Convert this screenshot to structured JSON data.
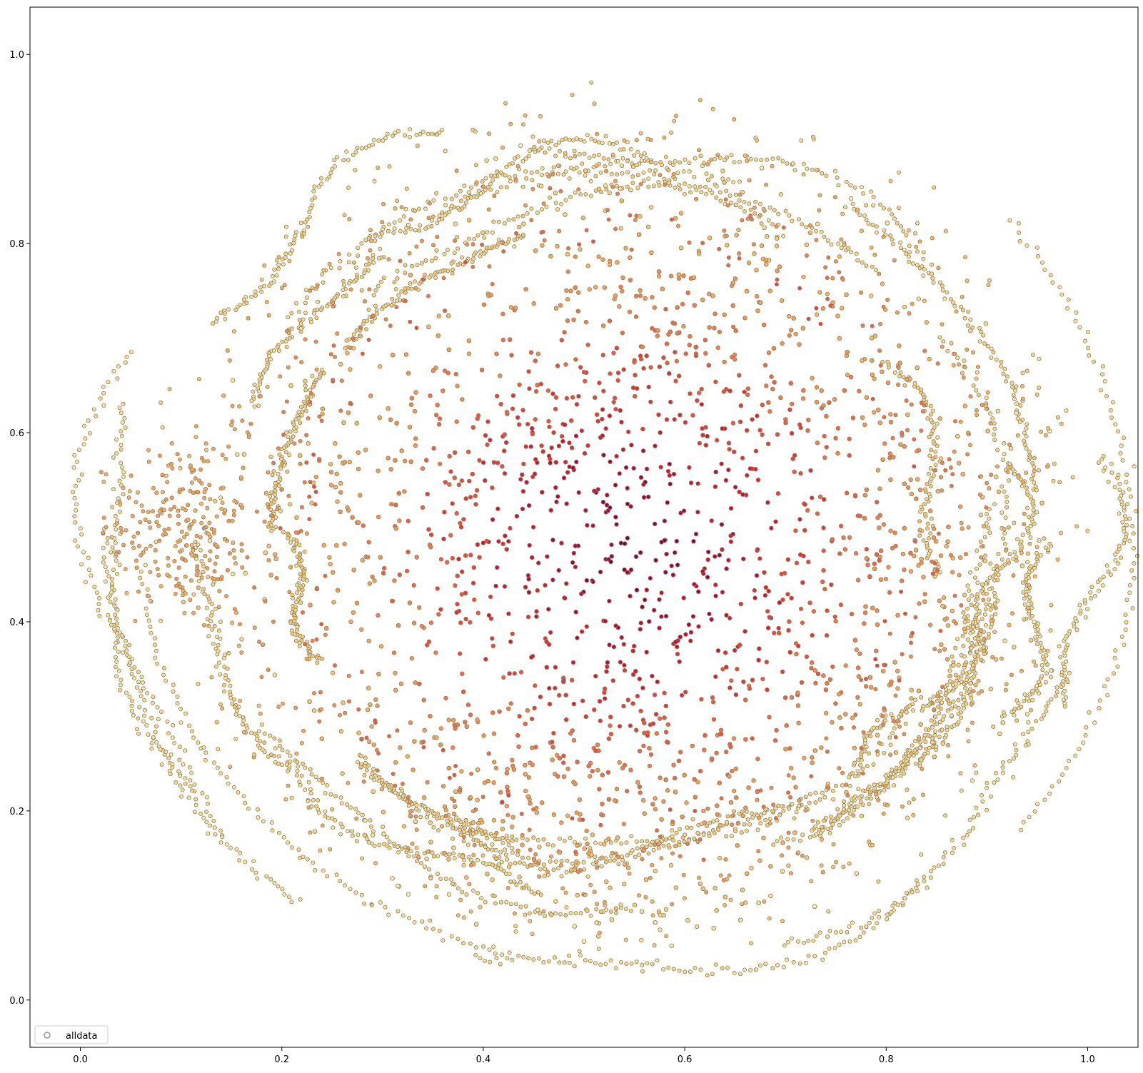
{
  "chart_data": {
    "type": "scatter",
    "title": "",
    "xlabel": "",
    "ylabel": "",
    "xlim": [
      -0.05,
      1.05
    ],
    "ylim": [
      -0.05,
      1.05
    ],
    "grid": false,
    "x_ticks": [
      "0.0",
      "0.2",
      "0.4",
      "0.6",
      "0.8",
      "1.0"
    ],
    "y_ticks": [
      "0.0",
      "0.2",
      "0.4",
      "0.6",
      "0.8",
      "1.0"
    ],
    "legend": {
      "placement": "lower-left",
      "entries": [
        "alldata"
      ]
    },
    "marker": {
      "shape": "circle",
      "edge_color": "#808080",
      "hollow_in_legend": true
    },
    "colormap": [
      "#ffeda0",
      "#fed976",
      "#feb24c",
      "#fd8d3c",
      "#fc4e2a",
      "#e31a1c",
      "#bd0026",
      "#800026"
    ],
    "series": [
      {
        "name": "alldata",
        "description_points": [
          [
            0.43,
            0.72
          ],
          [
            0.52,
            0.62
          ],
          [
            0.62,
            0.63
          ],
          [
            0.47,
            0.48
          ],
          [
            0.63,
            0.46
          ],
          [
            0.4,
            0.36
          ],
          [
            0.52,
            0.33
          ],
          [
            0.7,
            0.3
          ],
          [
            0.3,
            0.62
          ],
          [
            0.8,
            0.55
          ],
          [
            0.33,
            0.25
          ],
          [
            0.45,
            0.2
          ],
          [
            0.63,
            0.2
          ],
          [
            0.75,
            0.4
          ],
          [
            0.5,
            0.85
          ],
          [
            0.2,
            0.5
          ],
          [
            0.1,
            0.5
          ],
          [
            0.86,
            0.7
          ],
          [
            0.9,
            0.3
          ],
          [
            0.5,
            0.05
          ],
          [
            0.05,
            0.4
          ],
          [
            0.98,
            0.55
          ],
          [
            0.3,
            0.9
          ],
          [
            0.7,
            0.92
          ],
          [
            0.4,
            0.08
          ]
        ]
      }
    ]
  }
}
